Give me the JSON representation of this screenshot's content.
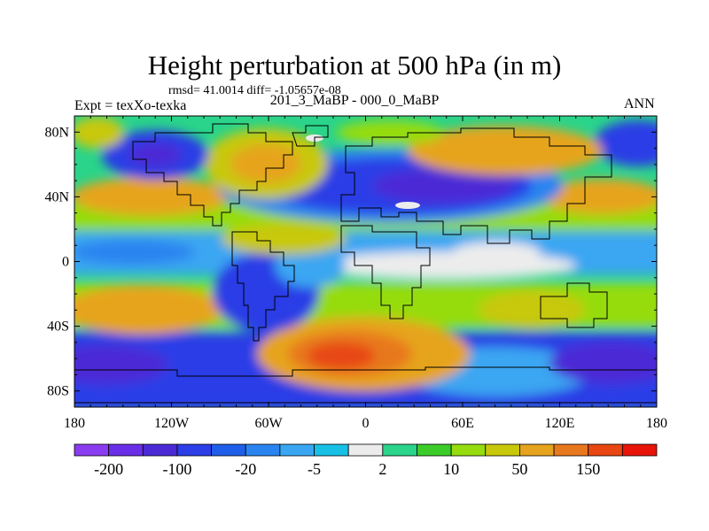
{
  "chart_data": {
    "type": "heatmap",
    "title": "Height perturbation at 500 hPa (in m)",
    "stats": "rmsd= 41.0014 diff= -1.05657e-08",
    "left_label": "Expt = texXo-texka",
    "subtitle": "201_3_MaBP - 000_0_MaBP",
    "season": "ANN",
    "x_ticks": [
      "180",
      "120W",
      "60W",
      "0",
      "60E",
      "120E",
      "180"
    ],
    "x_values": [
      -180,
      -120,
      -60,
      0,
      60,
      120,
      180
    ],
    "y_ticks": [
      "80N",
      "40N",
      "0",
      "40S",
      "80S"
    ],
    "y_values": [
      80,
      40,
      0,
      -40,
      -80
    ],
    "xlim": [
      -180,
      180
    ],
    "ylim": [
      -90,
      90
    ],
    "colorbar": {
      "colors": [
        "#8a3cf0",
        "#6a2ee8",
        "#4b2ad6",
        "#2c3ee6",
        "#1f5ee8",
        "#2a84f0",
        "#3aa6f2",
        "#18c0e6",
        "#ececec",
        "#2ad48a",
        "#3ccc2a",
        "#96dc0e",
        "#c8c80a",
        "#e6a41e",
        "#e8781e",
        "#e84612",
        "#e8140a"
      ],
      "tick_labels": [
        "-200",
        "-100",
        "-20",
        "-5",
        "2",
        "10",
        "50",
        "150"
      ]
    }
  }
}
